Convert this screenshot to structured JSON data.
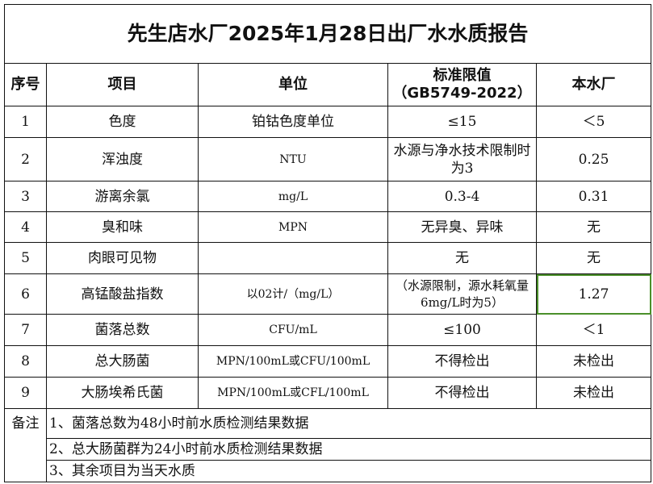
{
  "title": "先生店水厂2025年1月28日出厂水水质报告",
  "headers": {
    "index": "序号",
    "item": "项目",
    "unit": "单位",
    "limit_line1": "标准限值",
    "limit_line2": "（GB5749-2022）",
    "plant": "本水厂"
  },
  "rows": [
    {
      "index": "1",
      "item": "色度",
      "unit": "铂钴色度单位",
      "limit": "≤15",
      "plant": "＜5"
    },
    {
      "index": "2",
      "item": "浑浊度",
      "unit": "NTU",
      "limit": "水源与净水技术限制时为3",
      "plant": "0.25"
    },
    {
      "index": "3",
      "item": "游离余氯",
      "unit": "mg/L",
      "limit": "0.3-4",
      "plant": "0.31"
    },
    {
      "index": "4",
      "item": "臭和味",
      "unit": "MPN",
      "limit": "无异臭、异味",
      "plant": "无"
    },
    {
      "index": "5",
      "item": "肉眼可见物",
      "unit": "",
      "limit": "无",
      "plant": "无"
    },
    {
      "index": "6",
      "item": "高锰酸盐指数",
      "unit": "以02计/（mg/L）",
      "limit": "（水源限制，源水耗氧量6mg/L时为5）",
      "plant": "1.27"
    },
    {
      "index": "7",
      "item": "菌落总数",
      "unit": "CFU/mL",
      "limit": "≤100",
      "plant": "＜1"
    },
    {
      "index": "8",
      "item": "总大肠菌",
      "unit": "MPN/100mL或CFU/100mL",
      "limit": "不得检出",
      "plant": "未检出"
    },
    {
      "index": "9",
      "item": "大肠埃希氏菌",
      "unit": "MPN/100mL或CFL/100mL",
      "limit": "不得检出",
      "plant": "未检出"
    }
  ],
  "notes": {
    "label": "备注",
    "items": [
      "1、菌落总数为48小时前水质检测结果数据",
      "2、总大肠菌群为24小时前水质检测结果数据",
      "3、其余项目为当天水质"
    ]
  }
}
